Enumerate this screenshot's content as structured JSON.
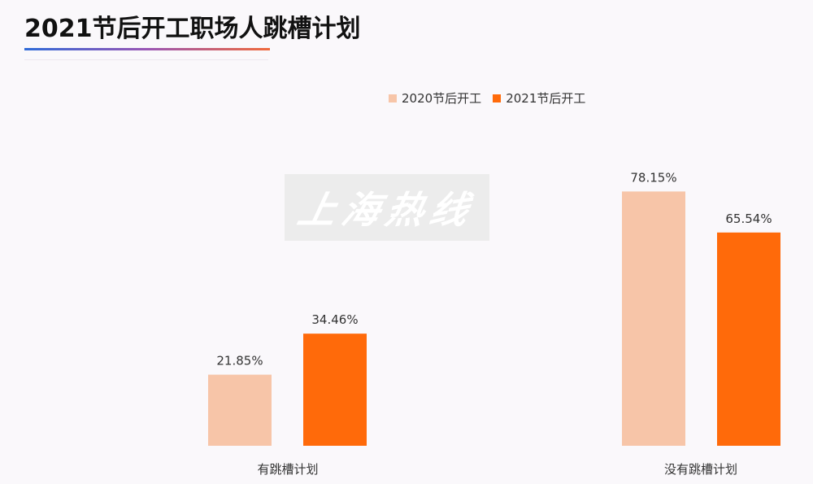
{
  "header": {
    "title": "2021节后开工职场人跳槽计划"
  },
  "watermark": {
    "text": "上海热线"
  },
  "colors": {
    "series_2020": "#f7c5a8",
    "series_2021": "#ff6a0a"
  },
  "chart_data": {
    "type": "bar",
    "title": "2021节后开工职场人跳槽计划",
    "categories": [
      "有跳槽计划",
      "没有跳槽计划"
    ],
    "series": [
      {
        "name": "2020节后开工",
        "values": [
          21.85,
          78.15
        ],
        "labels": [
          "21.85%",
          "78.15%"
        ]
      },
      {
        "name": "2021节后开工",
        "values": [
          34.46,
          65.54
        ],
        "labels": [
          "34.46%",
          "65.54%"
        ]
      }
    ],
    "xlabel": "",
    "ylabel": "",
    "ylim": [
      0,
      100
    ],
    "grid": false,
    "legend_position": "top-center"
  }
}
